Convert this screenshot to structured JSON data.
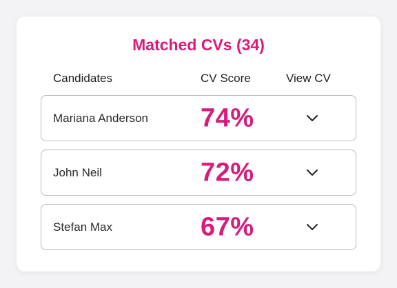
{
  "title": "Matched CVs (34)",
  "headers": {
    "candidates": "Candidates",
    "score": "CV Score",
    "view": "View CV"
  },
  "rows": [
    {
      "name": "Mariana Anderson",
      "score": "74%"
    },
    {
      "name": "John Neil",
      "score": "72%"
    },
    {
      "name": "Stefan Max",
      "score": "67%"
    }
  ],
  "colors": {
    "accent": "#d81b7a",
    "border": "#b9b9bd"
  },
  "icons": {
    "expand": "chevron-down-icon"
  }
}
